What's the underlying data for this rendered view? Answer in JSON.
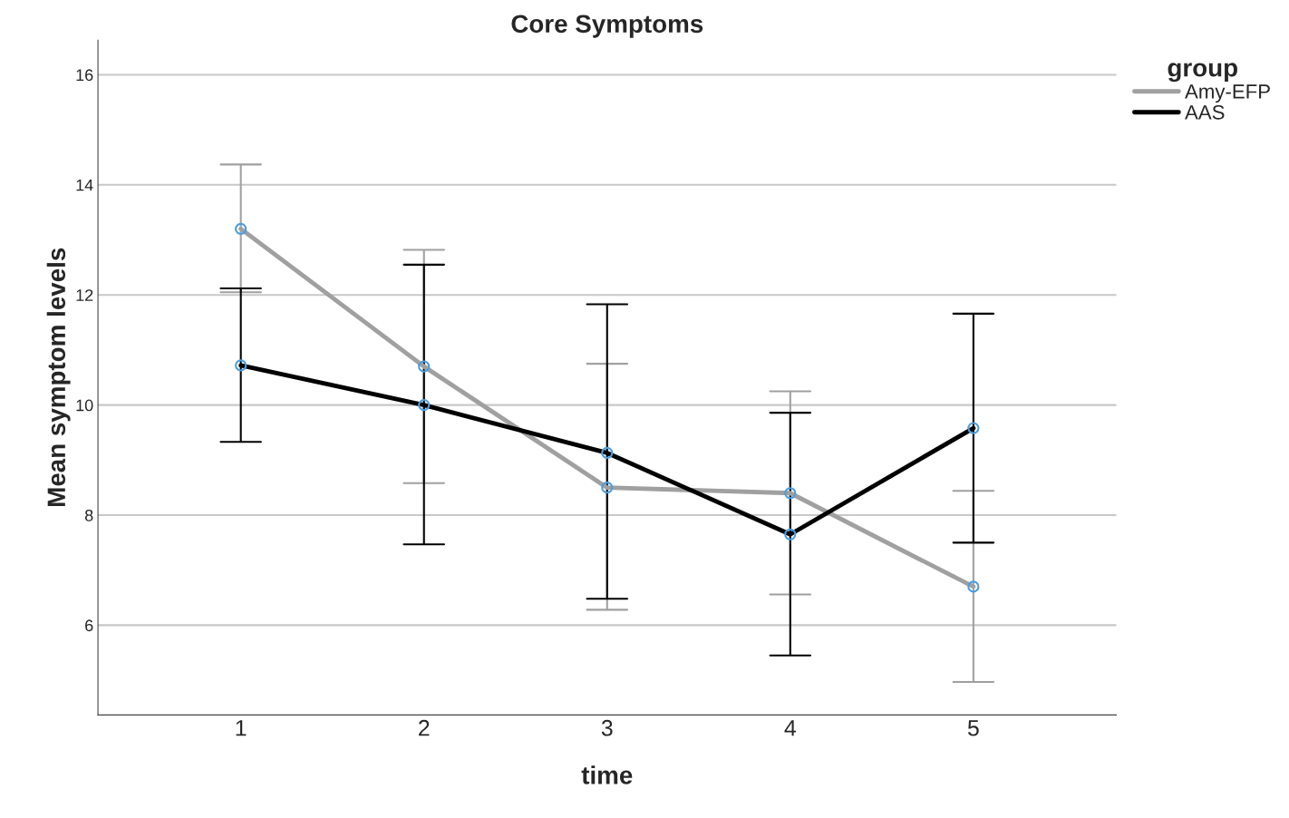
{
  "chart_data": {
    "type": "line",
    "title": "Core Symptoms",
    "xlabel": "time",
    "ylabel": "Mean symptom levels",
    "legend_title": "group",
    "categories": [
      "1",
      "2",
      "3",
      "4",
      "5"
    ],
    "series": [
      {
        "name": "Amy-EFP",
        "color": "#a0a0a0",
        "values": [
          13.2,
          10.7,
          8.5,
          8.4,
          6.7
        ],
        "errors": [
          [
            12.05,
            14.37
          ],
          [
            8.58,
            12.82
          ],
          [
            6.28,
            10.75
          ],
          [
            6.56,
            10.25
          ],
          [
            4.97,
            8.44
          ]
        ]
      },
      {
        "name": "AAS",
        "color": "#000000",
        "values": [
          10.72,
          10.0,
          9.13,
          7.65,
          9.58
        ],
        "errors": [
          [
            9.33,
            12.12
          ],
          [
            7.47,
            12.55
          ],
          [
            6.48,
            11.83
          ],
          [
            5.45,
            9.86
          ],
          [
            7.5,
            11.66
          ]
        ]
      }
    ],
    "ylim": [
      4.37,
      16.63
    ],
    "yticks": [
      6,
      8,
      10,
      12,
      14,
      16
    ],
    "grid": "y",
    "legend": "right",
    "marker": "circle",
    "line_style": "solid"
  }
}
